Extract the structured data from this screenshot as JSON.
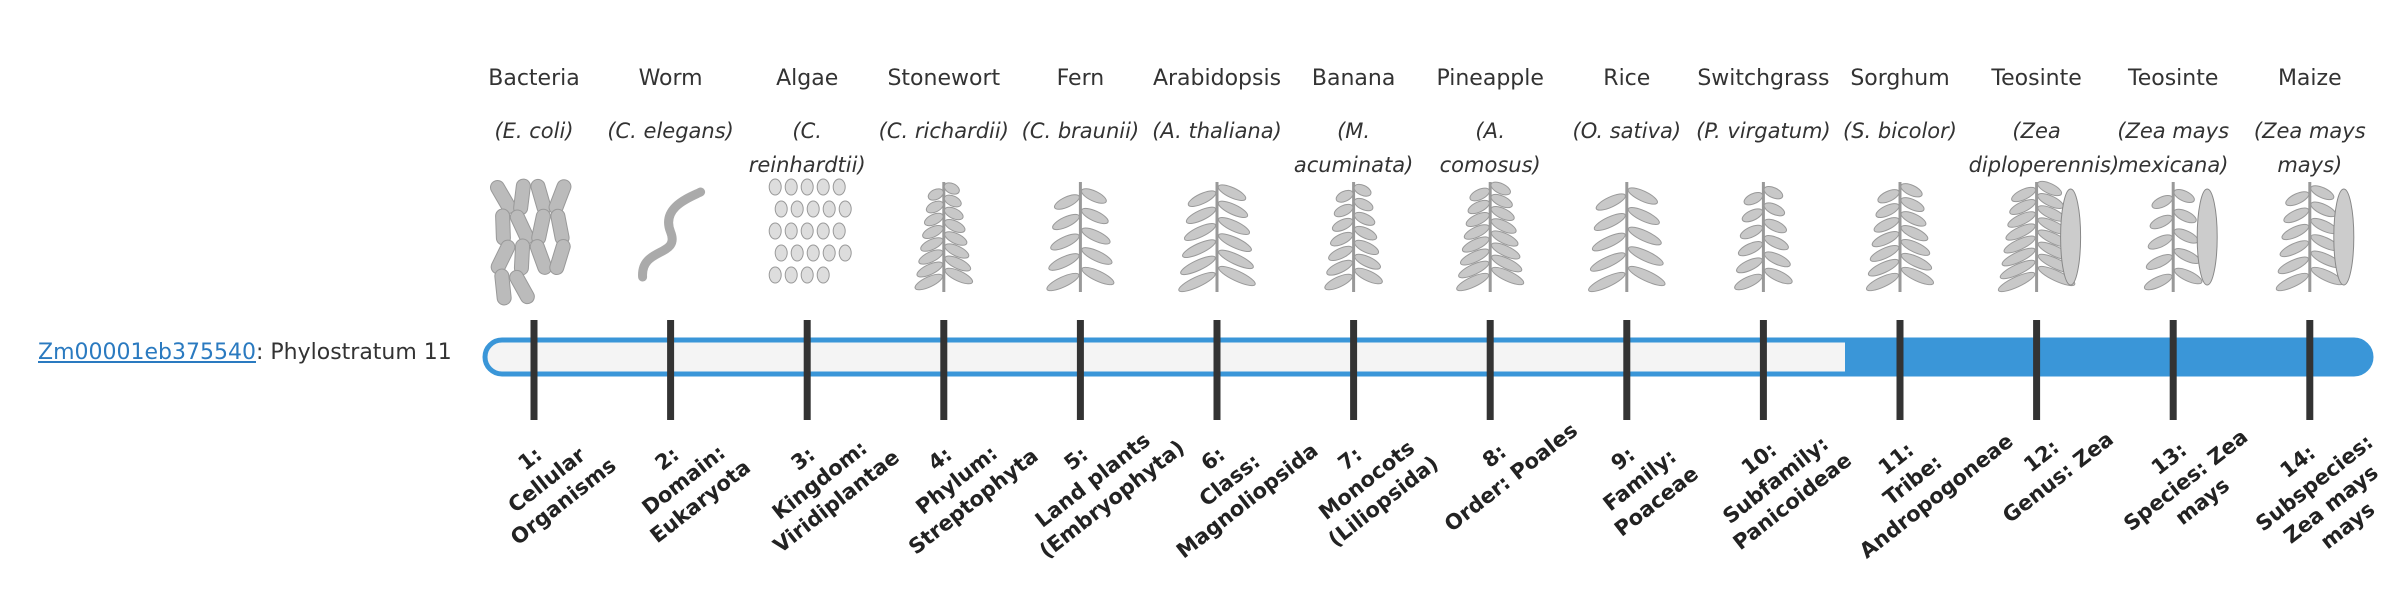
{
  "gene": {
    "id": "Zm00001eb375540",
    "label": ": Phylostratum 11"
  },
  "organisms": [
    {
      "name": "Bacteria",
      "species": "(E. coli)",
      "stratum": "1:",
      "stratum_name": "Cellular Organisms"
    },
    {
      "name": "Worm",
      "species": "(C. elegans)",
      "stratum": "2:",
      "stratum_name": "Domain: Eukaryota"
    },
    {
      "name": "Algae",
      "species": "(C. reinhardtii)",
      "stratum": "3:",
      "stratum_name": "Kingdom: Viridiplantae"
    },
    {
      "name": "Stonewort",
      "species": "(C. richardii)",
      "stratum": "4:",
      "stratum_name": "Phylum: Streptophyta"
    },
    {
      "name": "Fern",
      "species": "(C. braunii)",
      "stratum": "5:",
      "stratum_name": "Land plants (Embryophyta)"
    },
    {
      "name": "Arabidopsis",
      "species": "(A. thaliana)",
      "stratum": "6:",
      "stratum_name": "Class: Magnoliopsida"
    },
    {
      "name": "Banana",
      "species": "(M. acuminata)",
      "stratum": "7:",
      "stratum_name": "Monocots (Liliopsida)"
    },
    {
      "name": "Pineapple",
      "species": "(A. comosus)",
      "stratum": "8:",
      "stratum_name": "Order: Poales"
    },
    {
      "name": "Rice",
      "species": "(O. sativa)",
      "stratum": "9:",
      "stratum_name": "Family: Poaceae"
    },
    {
      "name": "Switchgrass",
      "species": "(P. virgatum)",
      "stratum": "10:",
      "stratum_name": "Subfamily: Panicoideae"
    },
    {
      "name": "Sorghum",
      "species": "(S. bicolor)",
      "stratum": "11:",
      "stratum_name": "Tribe: Andropogoneae"
    },
    {
      "name": "Teosinte",
      "species": "(Zea diploperennis)",
      "stratum": "12:",
      "stratum_name": "Genus: Zea"
    },
    {
      "name": "Teosinte",
      "species": "(Zea mays mexicana)",
      "stratum": "13:",
      "stratum_name": "Species: Zea mays"
    },
    {
      "name": "Maize",
      "species": "(Zea mays mays)",
      "stratum": "14:",
      "stratum_name": "Subspecies: Zea mays mays"
    }
  ]
}
